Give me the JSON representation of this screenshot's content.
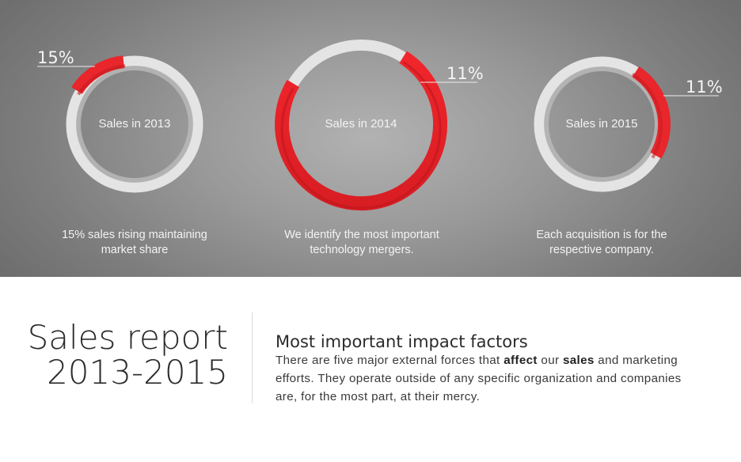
{
  "rings": [
    {
      "label": "Sales in 2013",
      "percent_text": "15%",
      "caption_line1": "15% sales rising maintaining",
      "caption_line2": "market share"
    },
    {
      "label": "Sales in 2014",
      "percent_text": "11%",
      "caption_line1": "We identify the most important",
      "caption_line2": "technology mergers."
    },
    {
      "label": "Sales in 2015",
      "percent_text": "11%",
      "caption_line1": "Each acquisition is for the",
      "caption_line2": "respective company."
    }
  ],
  "report": {
    "title_line1": "Sales report",
    "title_line2": "2013-2015",
    "heading": "Most important impact factors",
    "body_part1": "There are five major external forces that ",
    "body_bold1": "affect",
    "body_part2": " our ",
    "body_bold2": "sales",
    "body_part3": " and marketing efforts. They operate outside of any specific organization and companies are, for the most part, at their mercy."
  },
  "colors": {
    "accent_red": "#e8262b",
    "accent_red_dark": "#c51c22",
    "ring_light": "#e2e2e2",
    "ring_shadow": "#b9b9b9"
  }
}
